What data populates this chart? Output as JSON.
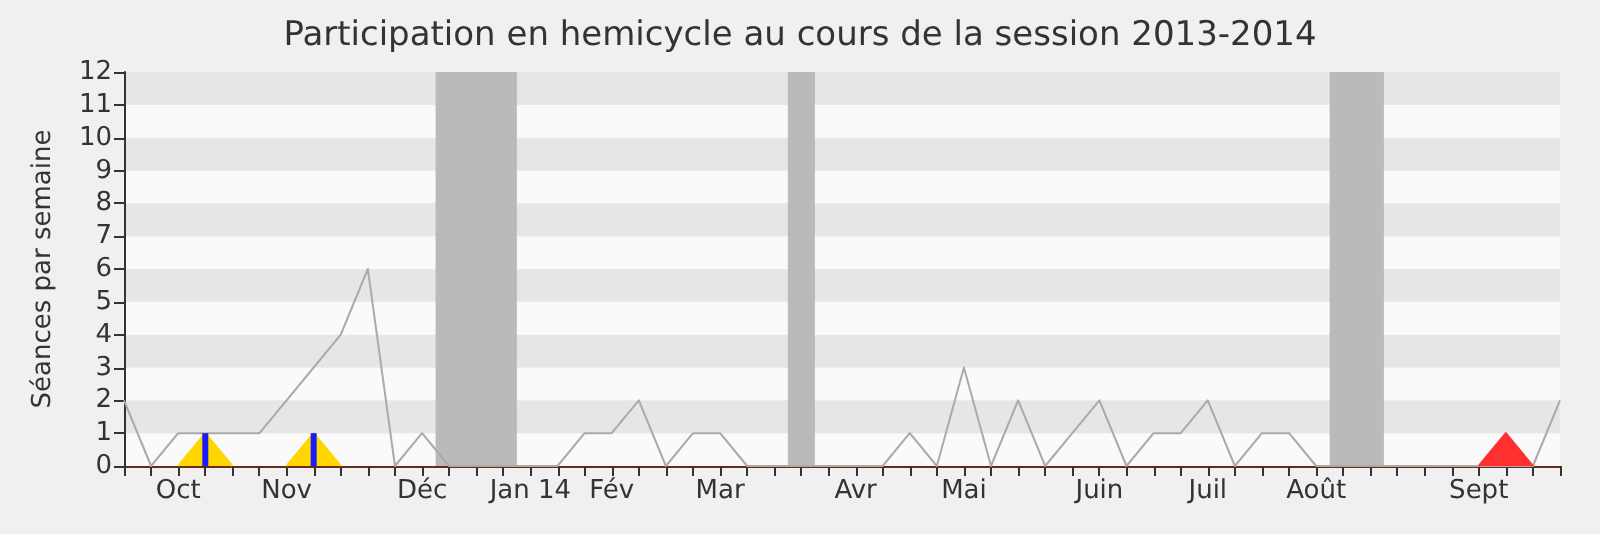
{
  "chart_data": {
    "type": "line",
    "title": "Participation en hemicycle au cours de la session 2013-2014",
    "ylabel": "Séances par semaine",
    "categories": [
      null,
      null,
      "Oct",
      null,
      null,
      null,
      "Nov",
      null,
      null,
      null,
      null,
      "Déc",
      null,
      null,
      null,
      "Jan 14",
      null,
      null,
      "Fév",
      null,
      null,
      null,
      "Mar",
      null,
      null,
      null,
      null,
      "Avr",
      null,
      null,
      null,
      "Mai",
      null,
      null,
      null,
      null,
      "Juin",
      null,
      null,
      null,
      "Juil",
      null,
      null,
      null,
      "Août",
      null,
      null,
      null,
      null,
      null,
      "Sept",
      null,
      null,
      null
    ],
    "series": [
      {
        "color": "#aaaaaa",
        "values": [
          2,
          0,
          1,
          1,
          1,
          1,
          2,
          3,
          4,
          6,
          0,
          1,
          0,
          0,
          0,
          0,
          0,
          1,
          1,
          2,
          0,
          1,
          1,
          0,
          0,
          0,
          0,
          0,
          0,
          1,
          0,
          3,
          0,
          2,
          0,
          1,
          2,
          0,
          1,
          1,
          2,
          0,
          1,
          1,
          0,
          0,
          0,
          0,
          0,
          0,
          0,
          0,
          0,
          2
        ]
      },
      {
        "type": "area",
        "color": "#ffd700",
        "values": [
          null,
          null,
          0,
          1,
          0,
          null,
          0,
          1,
          0,
          null,
          null,
          null,
          null,
          null,
          null,
          null,
          null,
          null,
          null,
          null,
          null,
          null,
          null,
          null,
          null,
          null,
          null,
          null,
          null,
          null,
          null,
          null,
          null,
          null,
          null,
          null,
          null,
          null,
          null,
          null,
          null,
          null,
          null,
          null,
          null,
          null,
          null,
          null,
          null,
          null,
          null,
          null,
          null,
          null
        ]
      },
      {
        "type": "bar",
        "color": "#1a1aff",
        "values": [
          null,
          null,
          null,
          1,
          null,
          null,
          null,
          1,
          null,
          null,
          null,
          null,
          null,
          null,
          null,
          null,
          null,
          null,
          null,
          null,
          null,
          null,
          null,
          null,
          null,
          null,
          null,
          null,
          null,
          null,
          null,
          null,
          null,
          null,
          null,
          null,
          null,
          null,
          null,
          null,
          null,
          null,
          null,
          null,
          null,
          null,
          null,
          null,
          null,
          null,
          null,
          null,
          null,
          null
        ]
      },
      {
        "type": "area",
        "color": "#ff3030",
        "values": [
          null,
          null,
          null,
          null,
          null,
          null,
          null,
          null,
          null,
          null,
          null,
          null,
          null,
          null,
          null,
          null,
          null,
          null,
          null,
          null,
          null,
          null,
          null,
          null,
          null,
          null,
          null,
          null,
          null,
          null,
          null,
          null,
          null,
          null,
          null,
          null,
          null,
          null,
          null,
          null,
          null,
          null,
          null,
          null,
          null,
          null,
          null,
          null,
          null,
          null,
          0,
          1,
          0,
          null
        ]
      }
    ],
    "ylim": [
      0,
      12
    ],
    "yticks": [
      0,
      1,
      2,
      3,
      4,
      5,
      6,
      7,
      8,
      9,
      10,
      11,
      12
    ],
    "marker": "none",
    "line_style": "solid"
  }
}
